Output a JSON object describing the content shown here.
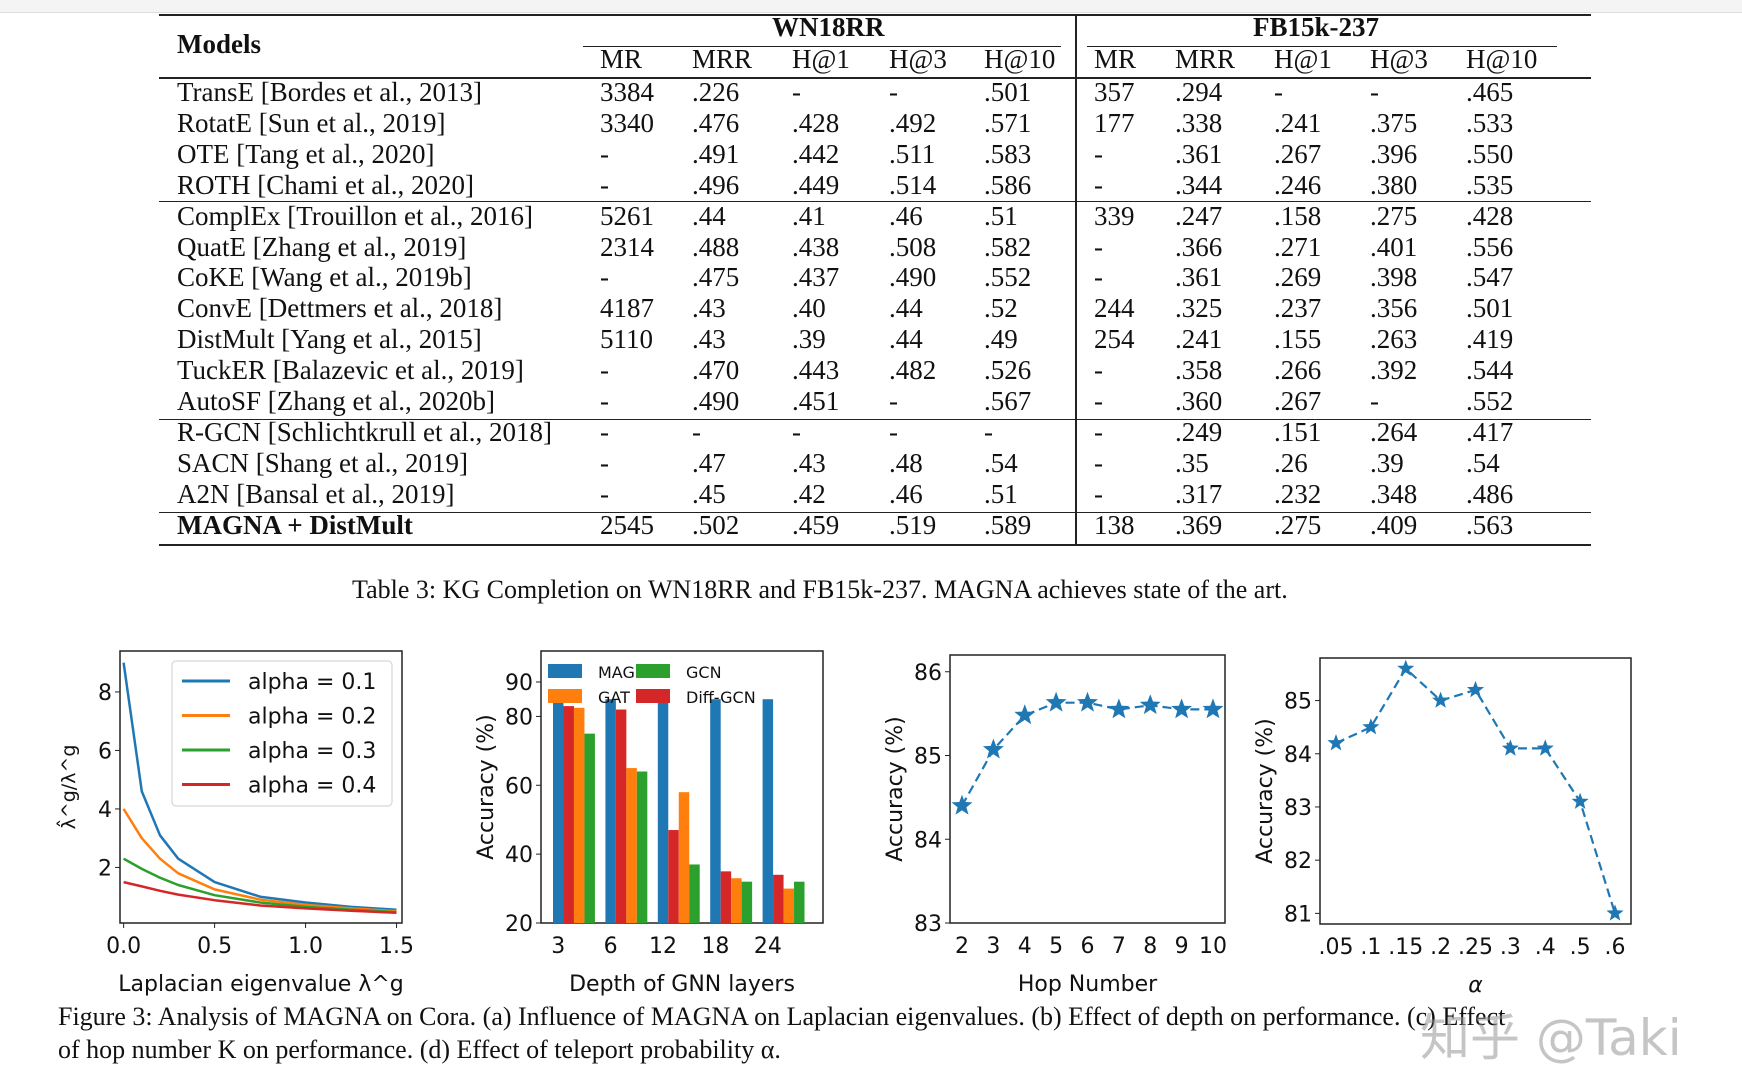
{
  "table": {
    "models_header": "Models",
    "groups": [
      "WN18RR",
      "FB15k-237"
    ],
    "columns": [
      "MR",
      "MRR",
      "H@1",
      "H@3",
      "H@10"
    ],
    "rows": [
      {
        "model": "TransE [Bordes et al., 2013]",
        "values": [
          "3384",
          ".226",
          "-",
          "-",
          ".501",
          "357",
          ".294",
          "-",
          "-",
          ".465"
        ]
      },
      {
        "model": "RotatE [Sun et al., 2019]",
        "values": [
          "3340",
          ".476",
          ".428",
          ".492",
          ".571",
          "177",
          ".338",
          ".241",
          ".375",
          ".533"
        ]
      },
      {
        "model": "OTE [Tang et al., 2020]",
        "values": [
          "-",
          ".491",
          ".442",
          ".511",
          ".583",
          "-",
          ".361",
          ".267",
          ".396",
          ".550"
        ]
      },
      {
        "model": "ROTH [Chami et al., 2020]",
        "values": [
          "-",
          ".496",
          ".449",
          ".514",
          ".586",
          "-",
          ".344",
          ".246",
          ".380",
          ".535"
        ]
      },
      {
        "model": "ComplEx [Trouillon et al., 2016]",
        "values": [
          "5261",
          ".44",
          ".41",
          ".46",
          ".51",
          "339",
          ".247",
          ".158",
          ".275",
          ".428"
        ]
      },
      {
        "model": "QuatE [Zhang et al., 2019]",
        "values": [
          "2314",
          ".488",
          ".438",
          ".508",
          ".582",
          "-",
          ".366",
          ".271",
          ".401",
          ".556"
        ]
      },
      {
        "model": "CoKE [Wang et al., 2019b]",
        "values": [
          "-",
          ".475",
          ".437",
          ".490",
          ".552",
          "-",
          ".361",
          ".269",
          ".398",
          ".547"
        ]
      },
      {
        "model": "ConvE [Dettmers et al., 2018]",
        "values": [
          "4187",
          ".43",
          ".40",
          ".44",
          ".52",
          "244",
          ".325",
          ".237",
          ".356",
          ".501"
        ]
      },
      {
        "model": "DistMult [Yang et al., 2015]",
        "values": [
          "5110",
          ".43",
          ".39",
          ".44",
          ".49",
          "254",
          ".241",
          ".155",
          ".263",
          ".419"
        ]
      },
      {
        "model": "TuckER [Balazevic et al., 2019]",
        "values": [
          "-",
          ".470",
          ".443",
          ".482",
          ".526",
          "-",
          ".358",
          ".266",
          ".392",
          ".544"
        ]
      },
      {
        "model": "AutoSF [Zhang et al., 2020b]",
        "values": [
          "-",
          ".490",
          ".451",
          "-",
          ".567",
          "-",
          ".360",
          ".267",
          "-",
          ".552"
        ]
      },
      {
        "model": "R-GCN [Schlichtkrull et al., 2018]",
        "values": [
          "-",
          "-",
          "-",
          "-",
          "-",
          "-",
          ".249",
          ".151",
          ".264",
          ".417"
        ]
      },
      {
        "model": "SACN [Shang et al., 2019]",
        "values": [
          "-",
          ".47",
          ".43",
          ".48",
          ".54",
          "-",
          ".35",
          ".26",
          ".39",
          ".54"
        ]
      },
      {
        "model": "A2N [Bansal et al., 2019]",
        "values": [
          "-",
          ".45",
          ".42",
          ".46",
          ".51",
          "-",
          ".317",
          ".232",
          ".348",
          ".486"
        ]
      },
      {
        "model": "MAGNA + DistMult",
        "bold": true,
        "values": [
          "2545",
          ".502",
          ".459",
          ".519",
          ".589",
          "138",
          ".369",
          ".275",
          ".409",
          ".563"
        ]
      }
    ],
    "caption": "Table 3: KG Completion on WN18RR and FB15k-237. MAGNA achieves state of the art."
  },
  "chart_data": [
    {
      "type": "line",
      "xlabel": "Laplacian eigenvalue λ^g",
      "ylabel": "λ̂^g/λ^g",
      "xlim": [
        -0.02,
        1.53
      ],
      "ylim": [
        0.1,
        9.4
      ],
      "xticks": [
        "0.0",
        "0.5",
        "1.0",
        "1.5"
      ],
      "yticks": [
        "2",
        "4",
        "6",
        "8"
      ],
      "legend": "top-right",
      "x": [
        0,
        0.1,
        0.2,
        0.3,
        0.5,
        0.75,
        1.0,
        1.25,
        1.5
      ],
      "series": [
        {
          "name": "alpha = 0.1",
          "color": "#1f77b4",
          "values": [
            9.0,
            4.6,
            3.1,
            2.3,
            1.5,
            1.0,
            0.8,
            0.65,
            0.55
          ]
        },
        {
          "name": "alpha = 0.2",
          "color": "#ff7f0e",
          "values": [
            4.0,
            3.0,
            2.3,
            1.8,
            1.25,
            0.9,
            0.72,
            0.6,
            0.5
          ]
        },
        {
          "name": "alpha = 0.3",
          "color": "#2ca02c",
          "values": [
            2.3,
            1.95,
            1.65,
            1.4,
            1.05,
            0.8,
            0.65,
            0.55,
            0.47
          ]
        },
        {
          "name": "alpha = 0.4",
          "color": "#d62728",
          "values": [
            1.5,
            1.35,
            1.2,
            1.07,
            0.88,
            0.7,
            0.6,
            0.52,
            0.45
          ]
        }
      ]
    },
    {
      "type": "bar",
      "xlabel": "Depth of GNN layers",
      "ylabel": "Accuracy (%)",
      "ylim": [
        20,
        99
      ],
      "yticks": [
        "20",
        "40",
        "60",
        "80",
        "90"
      ],
      "legend": "top",
      "categories": [
        "3",
        "6",
        "12",
        "18",
        "24"
      ],
      "series": [
        {
          "name": "MAGNA",
          "color": "#1f77b4",
          "values": [
            85,
            85,
            86,
            85,
            85
          ]
        },
        {
          "name": "Diff-GCN",
          "color": "#d62728",
          "values": [
            83,
            82,
            47,
            35,
            34
          ]
        },
        {
          "name": "GAT",
          "color": "#ff7f0e",
          "values": [
            82.5,
            65,
            58,
            33,
            30
          ]
        },
        {
          "name": "GCN",
          "color": "#2ca02c",
          "values": [
            75,
            64,
            37,
            32,
            32
          ]
        }
      ]
    },
    {
      "type": "line",
      "xlabel": "Hop Number",
      "ylabel": "Accuracy (%)",
      "ylim": [
        83,
        86.2
      ],
      "yticks": [
        "83",
        "84",
        "85",
        "86"
      ],
      "categories": [
        "2",
        "3",
        "4",
        "5",
        "6",
        "7",
        "8",
        "9",
        "10"
      ],
      "series": [
        {
          "color": "#1f77b4",
          "values": [
            84.4,
            85.07,
            85.48,
            85.63,
            85.63,
            85.55,
            85.6,
            85.55,
            85.55
          ]
        }
      ]
    },
    {
      "type": "line",
      "xlabel": "α",
      "ylabel": "Accuracy (%)",
      "ylim": [
        80.8,
        85.8
      ],
      "yticks": [
        "81",
        "82",
        "83",
        "84",
        "85"
      ],
      "categories": [
        ".05",
        ".1",
        ".15",
        ".2",
        ".25",
        ".3",
        ".4",
        ".5",
        ".6"
      ],
      "series": [
        {
          "color": "#1f77b4",
          "values": [
            84.2,
            84.5,
            85.6,
            85.0,
            85.2,
            84.1,
            84.1,
            83.1,
            81.0
          ]
        }
      ]
    }
  ],
  "figure_caption": {
    "line1": "Figure 3: Analysis of MAGNA on Cora. (a) Influence of MAGNA on Laplacian eigenvalues. (b) Effect of depth on performance. (c) Effect",
    "line2": "of hop number K on performance. (d) Effect of teleport probability α."
  },
  "watermark": "知乎 @Taki"
}
